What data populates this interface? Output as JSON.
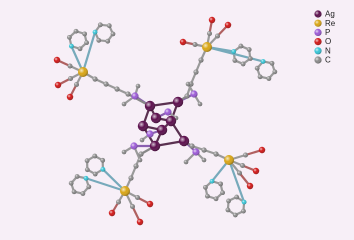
{
  "legend": {
    "items": [
      {
        "label": "Ag",
        "color": "#5b0d4c"
      },
      {
        "label": "Re",
        "color": "#d9a514"
      },
      {
        "label": "P",
        "color": "#9b59d6"
      },
      {
        "label": "O",
        "color": "#d01515"
      },
      {
        "label": "N",
        "color": "#35c4d6"
      },
      {
        "label": "C",
        "color": "#8a8a8a"
      }
    ]
  }
}
